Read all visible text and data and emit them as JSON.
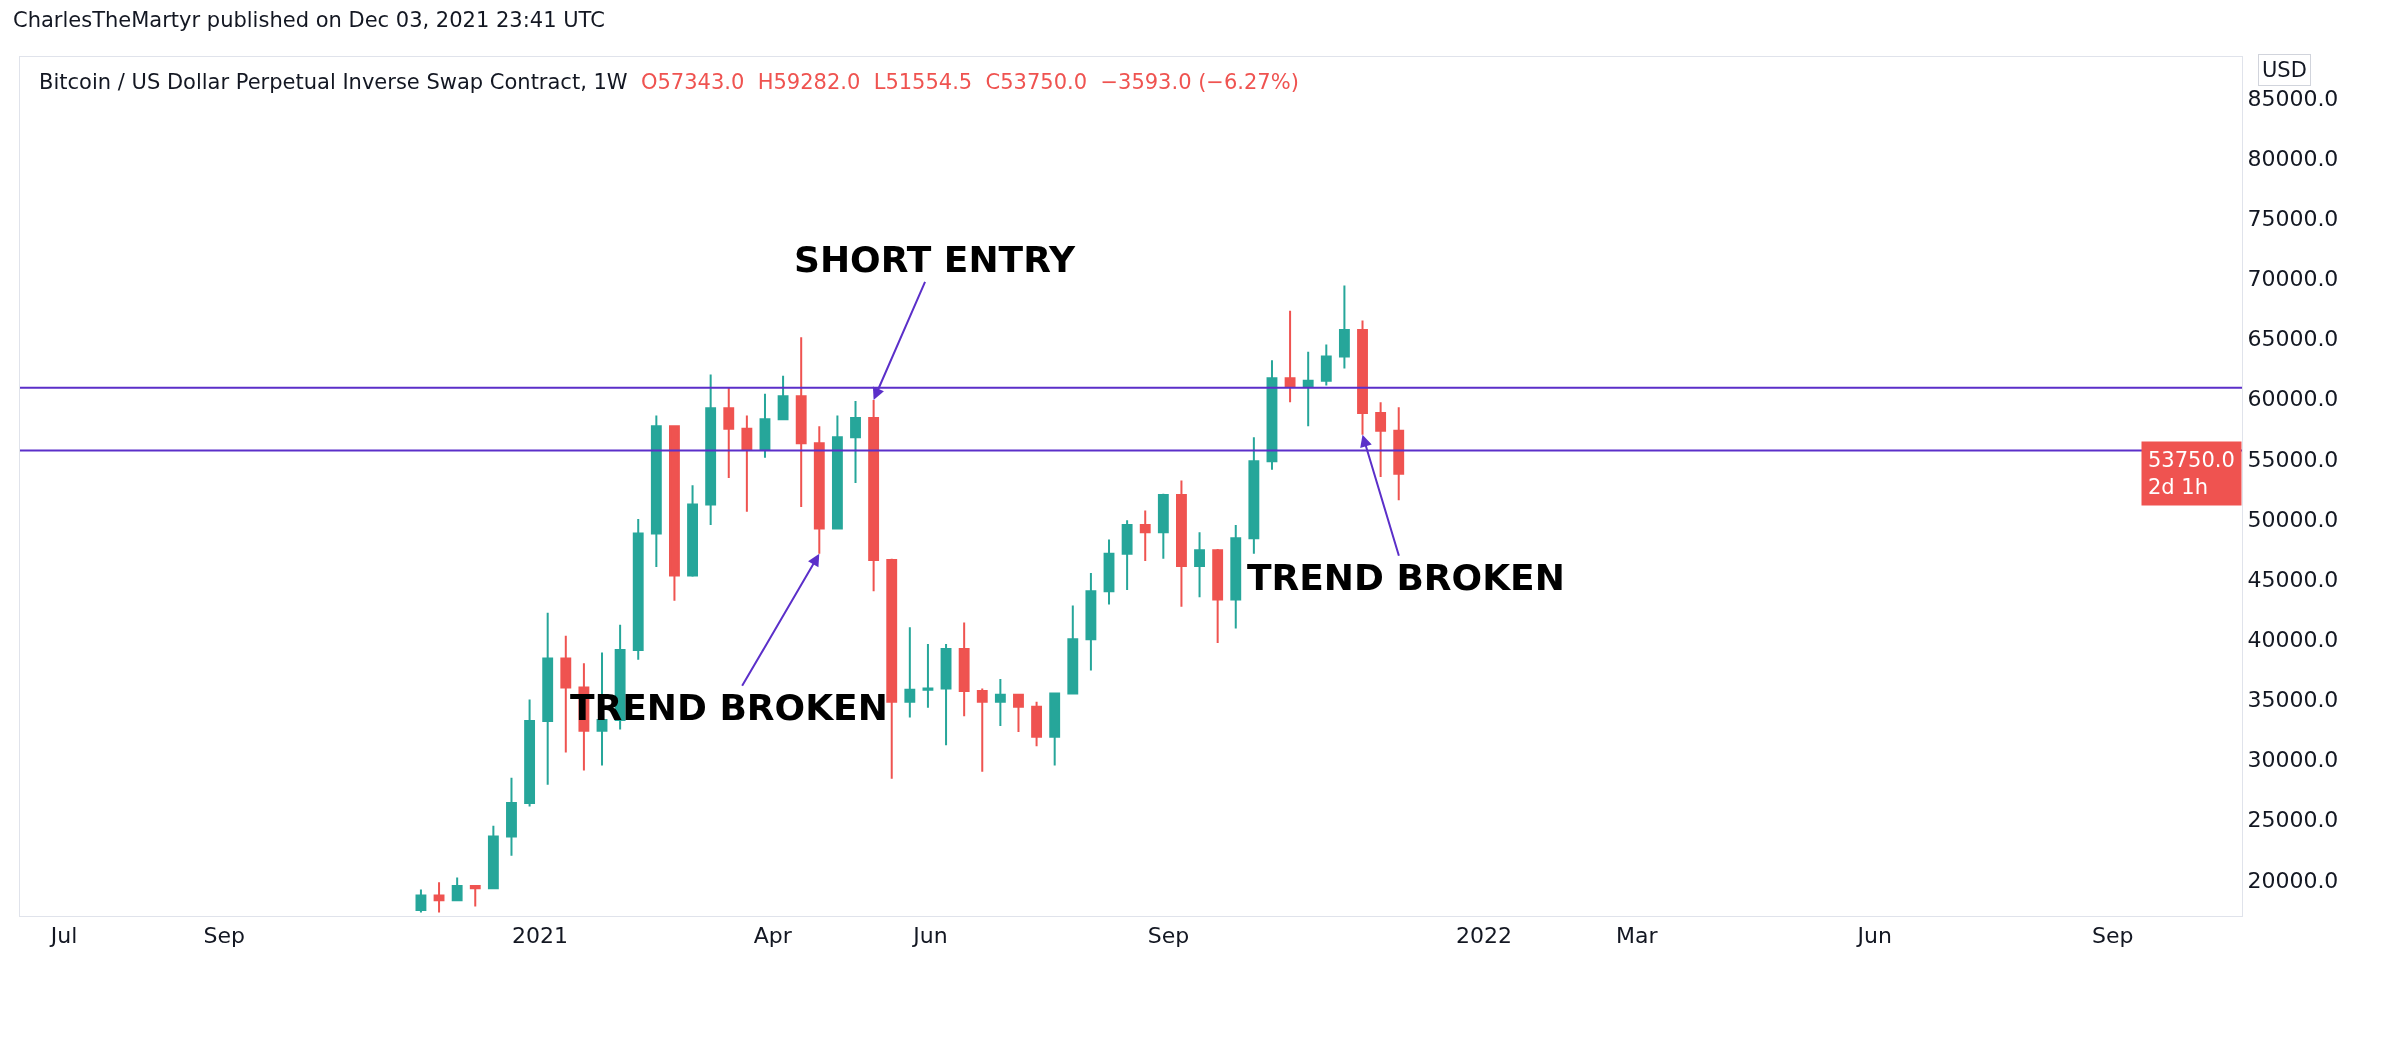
{
  "chart_data": {
    "type": "candlestick",
    "title": "Bitcoin / US Dollar Perpetual Inverse Swap Contract, 1W",
    "subtitle": "O57343.0  H59282.0  L51554.5  C53750.0  −3593.0 (−6.27%)",
    "x": [
      "2020-11-16",
      "2020-11-23",
      "2020-11-30",
      "2020-12-07",
      "2020-12-14",
      "2020-12-21",
      "2020-12-28",
      "2021-01-04",
      "2021-01-11",
      "2021-01-18",
      "2021-01-25",
      "2021-02-01",
      "2021-02-08",
      "2021-02-15",
      "2021-02-22",
      "2021-03-01",
      "2021-03-08",
      "2021-03-15",
      "2021-03-22",
      "2021-03-29",
      "2021-04-05",
      "2021-04-12",
      "2021-04-19",
      "2021-04-26",
      "2021-05-03",
      "2021-05-10",
      "2021-05-17",
      "2021-05-24",
      "2021-05-31",
      "2021-06-07",
      "2021-06-14",
      "2021-06-21",
      "2021-06-28",
      "2021-07-05",
      "2021-07-12",
      "2021-07-19",
      "2021-07-26",
      "2021-08-02",
      "2021-08-09",
      "2021-08-16",
      "2021-08-23",
      "2021-08-30",
      "2021-09-06",
      "2021-09-13",
      "2021-09-20",
      "2021-09-27",
      "2021-10-04",
      "2021-10-11",
      "2021-10-18",
      "2021-10-25",
      "2021-11-01",
      "2021-11-08",
      "2021-11-15",
      "2021-11-22",
      "2021-11-29"
    ],
    "ohlc": [
      [
        17500,
        19200,
        17300,
        18700
      ],
      [
        18700,
        19800,
        17300,
        18300
      ],
      [
        18300,
        20200,
        18300,
        19500
      ],
      [
        19500,
        19500,
        17800,
        19300
      ],
      [
        19300,
        24500,
        19300,
        23600
      ],
      [
        23600,
        28500,
        22000,
        26400
      ],
      [
        26400,
        35000,
        26100,
        33200
      ],
      [
        33200,
        42200,
        27900,
        38400
      ],
      [
        38400,
        40300,
        30600,
        36000
      ],
      [
        36000,
        38000,
        29100,
        32400
      ],
      [
        32400,
        38900,
        29500,
        33300
      ],
      [
        33300,
        41200,
        32500,
        39100
      ],
      [
        39100,
        50000,
        38300,
        48800
      ],
      [
        48800,
        58600,
        46000,
        57700
      ],
      [
        57700,
        57700,
        43200,
        45300
      ],
      [
        45300,
        52800,
        45200,
        51200
      ],
      [
        51200,
        62000,
        49500,
        59200
      ],
      [
        59200,
        60900,
        53400,
        57500
      ],
      [
        57500,
        58600,
        50600,
        55800
      ],
      [
        55800,
        60400,
        55100,
        58300
      ],
      [
        58300,
        61900,
        58300,
        60200
      ],
      [
        60200,
        65100,
        51000,
        56300
      ],
      [
        56300,
        57700,
        47100,
        49200
      ],
      [
        49200,
        58600,
        49200,
        56800
      ],
      [
        56800,
        59800,
        53000,
        58400
      ],
      [
        58400,
        59900,
        44000,
        46600
      ],
      [
        46600,
        46700,
        28400,
        34800
      ],
      [
        34800,
        41000,
        33500,
        35800
      ],
      [
        35800,
        39600,
        34300,
        35900
      ],
      [
        35900,
        39600,
        31200,
        39200
      ],
      [
        39200,
        41400,
        33600,
        35700
      ],
      [
        35700,
        35900,
        29000,
        34800
      ],
      [
        34800,
        36700,
        32800,
        35400
      ],
      [
        35400,
        35400,
        32300,
        34400
      ],
      [
        34400,
        34800,
        31100,
        31900
      ],
      [
        31900,
        35500,
        29500,
        35500
      ],
      [
        35500,
        42800,
        35500,
        40000
      ],
      [
        40000,
        45500,
        37400,
        44000
      ],
      [
        44000,
        48300,
        42900,
        47100
      ],
      [
        47100,
        49900,
        44100,
        49500
      ],
      [
        49500,
        50700,
        46500,
        48900
      ],
      [
        48900,
        52100,
        46700,
        52000
      ],
      [
        52000,
        53200,
        42700,
        46100
      ],
      [
        46100,
        48900,
        43500,
        47400
      ],
      [
        47400,
        47500,
        39700,
        43300
      ],
      [
        43300,
        49500,
        40900,
        48400
      ],
      [
        48400,
        56800,
        47100,
        54800
      ],
      [
        54800,
        63200,
        54100,
        61700
      ],
      [
        61700,
        67300,
        59700,
        61000
      ],
      [
        61000,
        63900,
        57700,
        61500
      ],
      [
        61500,
        64500,
        61100,
        63500
      ],
      [
        63500,
        69400,
        62500,
        65700
      ],
      [
        65700,
        66500,
        57000,
        58800
      ],
      [
        58800,
        59700,
        53500,
        57343
      ],
      [
        57343,
        59282,
        51554.5,
        53750
      ]
    ],
    "colors": [
      "#26a69a",
      "#ef5350",
      "#26a69a",
      "#ef5350",
      "#26a69a",
      "#26a69a",
      "#26a69a",
      "#26a69a",
      "#ef5350",
      "#ef5350",
      "#26a69a",
      "#26a69a",
      "#26a69a",
      "#26a69a",
      "#ef5350",
      "#26a69a",
      "#26a69a",
      "#ef5350",
      "#ef5350",
      "#26a69a",
      "#26a69a",
      "#ef5350",
      "#ef5350",
      "#26a69a",
      "#26a69a",
      "#ef5350",
      "#ef5350",
      "#26a69a",
      "#26a69a",
      "#26a69a",
      "#ef5350",
      "#ef5350",
      "#26a69a",
      "#ef5350",
      "#ef5350",
      "#26a69a",
      "#26a69a",
      "#26a69a",
      "#26a69a",
      "#26a69a",
      "#ef5350",
      "#26a69a",
      "#ef5350",
      "#26a69a",
      "#ef5350",
      "#26a69a",
      "#26a69a",
      "#26a69a",
      "#ef5350",
      "#26a69a",
      "#26a69a",
      "#26a69a",
      "#ef5350",
      "#ef5350",
      "#ef5350"
    ],
    "xlim": [
      "2020-06-14",
      "2022-10-21"
    ],
    "xticks": [
      {
        "value": "2020-07-01",
        "label": "Jul"
      },
      {
        "value": "2020-09-01",
        "label": "Sep"
      },
      {
        "value": "2021-01-01",
        "label": "2021"
      },
      {
        "value": "2021-04-01",
        "label": "Apr"
      },
      {
        "value": "2021-06-01",
        "label": "Jun"
      },
      {
        "value": "2021-09-01",
        "label": "Sep"
      },
      {
        "value": "2022-01-01",
        "label": "2022"
      },
      {
        "value": "2022-03-01",
        "label": "Mar"
      },
      {
        "value": "2022-06-01",
        "label": "Jun"
      },
      {
        "value": "2022-09-01",
        "label": "Sep"
      }
    ],
    "ylim": [
      17000,
      88400
    ],
    "yticks": [
      {
        "value": 20000,
        "label": "20000.0"
      },
      {
        "value": 25000,
        "label": "25000.0"
      },
      {
        "value": 30000,
        "label": "30000.0"
      },
      {
        "value": 35000,
        "label": "35000.0"
      },
      {
        "value": 40000,
        "label": "40000.0"
      },
      {
        "value": 45000,
        "label": "45000.0"
      },
      {
        "value": 50000,
        "label": "50000.0"
      },
      {
        "value": 55000,
        "label": "55000.0"
      },
      {
        "value": 60000,
        "label": "60000.0"
      },
      {
        "value": 65000,
        "label": "65000.0"
      },
      {
        "value": 70000,
        "label": "70000.0"
      },
      {
        "value": 75000,
        "label": "75000.0"
      },
      {
        "value": 80000,
        "label": "80000.0"
      },
      {
        "value": 85000,
        "label": "85000.0"
      }
    ],
    "ref_lines": [
      {
        "axis": "y",
        "value": 55700,
        "color": "#5b2fc9"
      },
      {
        "axis": "y",
        "value": 60900,
        "color": "#5b2fc9"
      }
    ],
    "annotations": [
      "CharlesTheMartyr published on Dec 03, 2021 23:41 UTC",
      "USD",
      "53750.0\n2d 1h",
      {
        "text": "SHORT ENTRY",
        "x": "2021-05-10",
        "y": 59900
      },
      {
        "text": "TREND BROKEN",
        "x": "2021-04-19",
        "y": 47100
      },
      {
        "text": "TREND BROKEN",
        "x": "2021-11-15",
        "y": 57000
      }
    ]
  }
}
